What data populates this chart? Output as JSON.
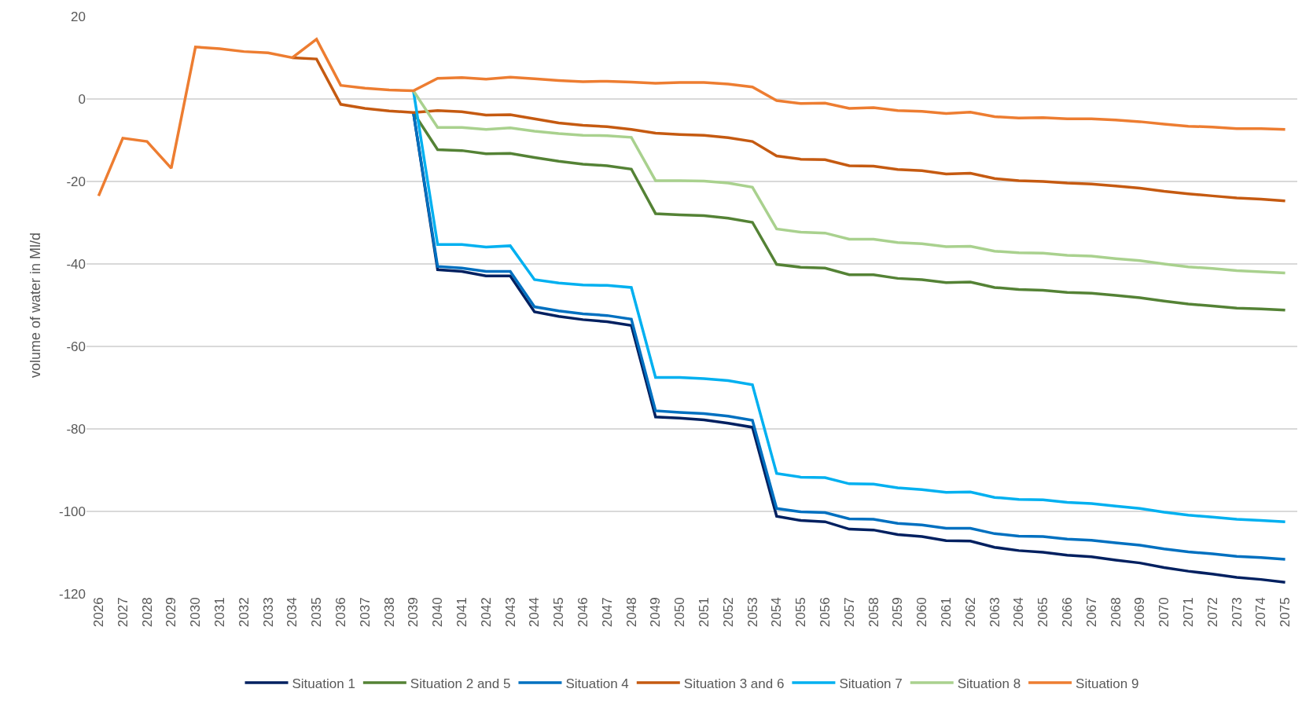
{
  "chart_data": {
    "type": "line",
    "ylabel": "volume of water in Ml/d",
    "categories": [
      "2026",
      "2027",
      "2028",
      "2029",
      "2030",
      "2031",
      "2032",
      "2033",
      "2034",
      "2035",
      "2036",
      "2037",
      "2038",
      "2039",
      "2040",
      "2041",
      "2042",
      "2043",
      "2044",
      "2045",
      "2046",
      "2047",
      "2048",
      "2049",
      "2050",
      "2051",
      "2052",
      "2053",
      "2054",
      "2055",
      "2056",
      "2057",
      "2058",
      "2059",
      "2060",
      "2061",
      "2062",
      "2063",
      "2064",
      "2065",
      "2066",
      "2067",
      "2068",
      "2069",
      "2070",
      "2071",
      "2072",
      "2073",
      "2074",
      "2075"
    ],
    "series": [
      {
        "name": "Situation 1",
        "color": "#002060",
        "values": [
          null,
          null,
          null,
          null,
          null,
          null,
          null,
          null,
          null,
          null,
          null,
          null,
          null,
          -3.3,
          -41.4,
          -41.8,
          -42.9,
          -42.9,
          -51.6,
          -52.7,
          -53.5,
          -54.0,
          -54.9,
          -77.1,
          -77.4,
          -77.8,
          -78.6,
          -79.6,
          -101.2,
          -102.2,
          -102.5,
          -104.3,
          -104.5,
          -105.6,
          -106.1,
          -107.1,
          -107.2,
          -108.7,
          -109.5,
          -109.9,
          -110.6,
          -111.0,
          -111.8,
          -112.5,
          -113.6,
          -114.5,
          -115.2,
          -116.0,
          -116.5,
          -117.2
        ]
      },
      {
        "name": "Situation 2 and 5",
        "color": "#548235",
        "values": [
          null,
          null,
          null,
          null,
          null,
          null,
          null,
          null,
          null,
          null,
          null,
          null,
          null,
          -3.3,
          -12.3,
          -12.5,
          -13.3,
          -13.2,
          -14.2,
          -15.1,
          -15.8,
          -16.2,
          -17.0,
          -27.8,
          -28.1,
          -28.3,
          -28.9,
          -29.9,
          -40.1,
          -40.8,
          -41.0,
          -42.6,
          -42.6,
          -43.5,
          -43.8,
          -44.5,
          -44.4,
          -45.7,
          -46.2,
          -46.4,
          -46.9,
          -47.1,
          -47.6,
          -48.2,
          -49.0,
          -49.7,
          -50.2,
          -50.7,
          -50.9,
          -51.2
        ]
      },
      {
        "name": "Situation 4",
        "color": "#0070c0",
        "values": [
          null,
          null,
          null,
          null,
          null,
          null,
          null,
          null,
          null,
          null,
          null,
          null,
          null,
          -3.3,
          -40.6,
          -41.0,
          -41.8,
          -41.8,
          -50.4,
          -51.4,
          -52.1,
          -52.5,
          -53.4,
          -75.6,
          -76.0,
          -76.3,
          -76.9,
          -77.9,
          -99.3,
          -100.1,
          -100.3,
          -101.8,
          -101.9,
          -102.9,
          -103.3,
          -104.1,
          -104.1,
          -105.4,
          -106.0,
          -106.1,
          -106.7,
          -107.0,
          -107.6,
          -108.2,
          -109.1,
          -109.8,
          -110.3,
          -110.9,
          -111.2,
          -111.6
        ]
      },
      {
        "name": "Situation 3 and 6",
        "color": "#c55a11",
        "values": [
          null,
          null,
          null,
          null,
          null,
          null,
          null,
          null,
          10.0,
          9.7,
          -1.3,
          -2.3,
          -2.9,
          -3.3,
          -2.8,
          -3.1,
          -3.9,
          -3.8,
          -4.8,
          -5.8,
          -6.4,
          -6.7,
          -7.4,
          -8.3,
          -8.6,
          -8.8,
          -9.4,
          -10.3,
          -13.8,
          -14.6,
          -14.7,
          -16.2,
          -16.3,
          -17.1,
          -17.4,
          -18.2,
          -18.0,
          -19.3,
          -19.8,
          -20.0,
          -20.4,
          -20.6,
          -21.1,
          -21.6,
          -22.4,
          -23.0,
          -23.5,
          -24.0,
          -24.3,
          -24.7
        ]
      },
      {
        "name": "Situation 7",
        "color": "#00b0f0",
        "values": [
          null,
          null,
          null,
          null,
          null,
          null,
          null,
          null,
          null,
          null,
          null,
          null,
          null,
          2.0,
          -35.3,
          -35.3,
          -35.9,
          -35.6,
          -43.8,
          -44.6,
          -45.1,
          -45.2,
          -45.7,
          -67.5,
          -67.5,
          -67.8,
          -68.3,
          -69.3,
          -90.8,
          -91.7,
          -91.8,
          -93.3,
          -93.4,
          -94.3,
          -94.7,
          -95.4,
          -95.3,
          -96.6,
          -97.1,
          -97.2,
          -97.8,
          -98.1,
          -98.7,
          -99.3,
          -100.2,
          -100.9,
          -101.4,
          -101.9,
          -102.2,
          -102.5
        ]
      },
      {
        "name": "Situation 8",
        "color": "#a9d18e",
        "values": [
          null,
          null,
          null,
          null,
          null,
          null,
          null,
          null,
          null,
          null,
          null,
          null,
          null,
          2.0,
          -6.9,
          -6.9,
          -7.4,
          -7.0,
          -7.8,
          -8.4,
          -8.8,
          -8.9,
          -9.3,
          -19.8,
          -19.8,
          -19.9,
          -20.4,
          -21.4,
          -31.5,
          -32.3,
          -32.5,
          -34.0,
          -34.0,
          -34.8,
          -35.1,
          -35.8,
          -35.7,
          -36.9,
          -37.3,
          -37.4,
          -37.9,
          -38.1,
          -38.7,
          -39.2,
          -40.0,
          -40.7,
          -41.1,
          -41.6,
          -41.9,
          -42.2
        ]
      },
      {
        "name": "Situation 9",
        "color": "#ed7d31",
        "values": [
          -23.5,
          -9.5,
          -10.3,
          -16.8,
          12.6,
          12.2,
          11.5,
          11.2,
          10.0,
          14.5,
          3.3,
          2.6,
          2.2,
          2.0,
          5.0,
          5.2,
          4.8,
          5.3,
          4.9,
          4.5,
          4.2,
          4.3,
          4.1,
          3.8,
          4.0,
          4.0,
          3.6,
          2.9,
          -0.4,
          -1.1,
          -1.0,
          -2.3,
          -2.1,
          -2.8,
          -3.0,
          -3.5,
          -3.2,
          -4.3,
          -4.6,
          -4.5,
          -4.8,
          -4.8,
          -5.1,
          -5.5,
          -6.1,
          -6.6,
          -6.8,
          -7.2,
          -7.2,
          -7.4
        ]
      }
    ],
    "ylim": [
      -120,
      20
    ],
    "yticks": [
      -120,
      -100,
      -80,
      -60,
      -40,
      -20,
      0,
      20
    ],
    "grid": "y",
    "legend": "bottom",
    "marker": "none",
    "line_style": "solid"
  }
}
